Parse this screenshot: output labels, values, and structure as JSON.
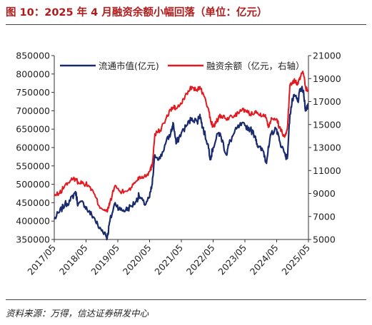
{
  "header": {
    "title": "图 10：2025 年 4 月融资余额小幅回落（单位：亿元）"
  },
  "footer": {
    "source": "资料来源：万得，信达证券研发中心"
  },
  "chart_data": {
    "type": "line",
    "title": "",
    "x_tick_labels": [
      "2017/05",
      "2018/05",
      "2019/05",
      "2020/05",
      "2021/05",
      "2022/05",
      "2023/05",
      "2024/05",
      "2025/05"
    ],
    "x_range": [
      "2017/05",
      "2025/05"
    ],
    "y_left": {
      "min": 350000,
      "max": 850000,
      "step": 50000,
      "ticks": [
        "350000",
        "400000",
        "450000",
        "500000",
        "550000",
        "600000",
        "650000",
        "700000",
        "750000",
        "800000",
        "850000"
      ]
    },
    "y_right": {
      "min": 5000,
      "max": 21000,
      "step": 2000,
      "ticks": [
        "5000",
        "7000",
        "9000",
        "11000",
        "13000",
        "15000",
        "17000",
        "19000",
        "21000"
      ]
    },
    "grid": false,
    "legend_position": "top",
    "series": [
      {
        "name": "流通市值(亿元)",
        "axis": "left",
        "color": "#1a2b6d",
        "points": [
          [
            "2017-05",
            405000
          ],
          [
            "2017-07",
            425000
          ],
          [
            "2017-09",
            445000
          ],
          [
            "2017-11",
            455000
          ],
          [
            "2018-01",
            480000
          ],
          [
            "2018-02",
            445000
          ],
          [
            "2018-04",
            450000
          ],
          [
            "2018-06",
            425000
          ],
          [
            "2018-08",
            410000
          ],
          [
            "2018-10",
            380000
          ],
          [
            "2018-12",
            370000
          ],
          [
            "2019-01",
            355000
          ],
          [
            "2019-02",
            400000
          ],
          [
            "2019-04",
            450000
          ],
          [
            "2019-06",
            430000
          ],
          [
            "2019-08",
            430000
          ],
          [
            "2019-10",
            440000
          ],
          [
            "2019-12",
            455000
          ],
          [
            "2020-01",
            470000
          ],
          [
            "2020-03",
            445000
          ],
          [
            "2020-05",
            465000
          ],
          [
            "2020-06",
            500000
          ],
          [
            "2020-07",
            580000
          ],
          [
            "2020-09",
            570000
          ],
          [
            "2020-11",
            610000
          ],
          [
            "2021-01",
            640000
          ],
          [
            "2021-02",
            665000
          ],
          [
            "2021-03",
            610000
          ],
          [
            "2021-05",
            640000
          ],
          [
            "2021-07",
            660000
          ],
          [
            "2021-09",
            680000
          ],
          [
            "2021-11",
            670000
          ],
          [
            "2021-12",
            690000
          ],
          [
            "2022-01",
            655000
          ],
          [
            "2022-03",
            610000
          ],
          [
            "2022-04",
            570000
          ],
          [
            "2022-05",
            600000
          ],
          [
            "2022-07",
            640000
          ],
          [
            "2022-08",
            630000
          ],
          [
            "2022-10",
            580000
          ],
          [
            "2022-11",
            610000
          ],
          [
            "2023-01",
            640000
          ],
          [
            "2023-03",
            660000
          ],
          [
            "2023-05",
            660000
          ],
          [
            "2023-07",
            650000
          ],
          [
            "2023-09",
            630000
          ],
          [
            "2023-10",
            600000
          ],
          [
            "2023-12",
            590000
          ],
          [
            "2024-01",
            560000
          ],
          [
            "2024-02",
            600000
          ],
          [
            "2024-03",
            640000
          ],
          [
            "2024-05",
            650000
          ],
          [
            "2024-06",
            620000
          ],
          [
            "2024-08",
            585000
          ],
          [
            "2024-09",
            570000
          ],
          [
            "2024-10",
            690000
          ],
          [
            "2024-11",
            730000
          ],
          [
            "2024-12",
            740000
          ],
          [
            "2025-01",
            725000
          ],
          [
            "2025-02",
            760000
          ],
          [
            "2025-03",
            755000
          ],
          [
            "2025-04",
            700000
          ],
          [
            "2025-05",
            720000
          ]
        ]
      },
      {
        "name": "融资余额（亿元，右轴）",
        "axis": "right",
        "color": "#e3191f",
        "points": [
          [
            "2017-05",
            8800
          ],
          [
            "2017-07",
            9000
          ],
          [
            "2017-09",
            9700
          ],
          [
            "2017-11",
            10100
          ],
          [
            "2018-01",
            10300
          ],
          [
            "2018-02",
            10000
          ],
          [
            "2018-04",
            9900
          ],
          [
            "2018-06",
            9700
          ],
          [
            "2018-08",
            9000
          ],
          [
            "2018-10",
            7900
          ],
          [
            "2018-12",
            7600
          ],
          [
            "2019-01",
            7400
          ],
          [
            "2019-02",
            8200
          ],
          [
            "2019-04",
            9700
          ],
          [
            "2019-06",
            9100
          ],
          [
            "2019-08",
            9200
          ],
          [
            "2019-10",
            9500
          ],
          [
            "2019-12",
            10100
          ],
          [
            "2020-01",
            10400
          ],
          [
            "2020-03",
            10500
          ],
          [
            "2020-05",
            10900
          ],
          [
            "2020-06",
            11500
          ],
          [
            "2020-07",
            14200
          ],
          [
            "2020-09",
            14500
          ],
          [
            "2020-11",
            15400
          ],
          [
            "2021-01",
            16300
          ],
          [
            "2021-02",
            16500
          ],
          [
            "2021-03",
            16400
          ],
          [
            "2021-05",
            16800
          ],
          [
            "2021-07",
            17700
          ],
          [
            "2021-09",
            18300
          ],
          [
            "2021-11",
            17900
          ],
          [
            "2021-12",
            18300
          ],
          [
            "2022-01",
            17800
          ],
          [
            "2022-03",
            16500
          ],
          [
            "2022-04",
            15400
          ],
          [
            "2022-05",
            14800
          ],
          [
            "2022-07",
            15500
          ],
          [
            "2022-08",
            15800
          ],
          [
            "2022-10",
            15400
          ],
          [
            "2022-11",
            15600
          ],
          [
            "2023-01",
            15800
          ],
          [
            "2023-03",
            16100
          ],
          [
            "2023-05",
            16300
          ],
          [
            "2023-07",
            15900
          ],
          [
            "2023-09",
            16200
          ],
          [
            "2023-10",
            15900
          ],
          [
            "2023-12",
            15900
          ],
          [
            "2024-01",
            15600
          ],
          [
            "2024-02",
            14800
          ],
          [
            "2024-03",
            15600
          ],
          [
            "2024-05",
            15500
          ],
          [
            "2024-06",
            14800
          ],
          [
            "2024-08",
            13900
          ],
          [
            "2024-09",
            14600
          ],
          [
            "2024-10",
            18400
          ],
          [
            "2024-11",
            18700
          ],
          [
            "2024-12",
            18800
          ],
          [
            "2025-01",
            18500
          ],
          [
            "2025-02",
            19200
          ],
          [
            "2025-03",
            19500
          ],
          [
            "2025-04",
            18100
          ],
          [
            "2025-05",
            18000
          ]
        ]
      }
    ]
  }
}
